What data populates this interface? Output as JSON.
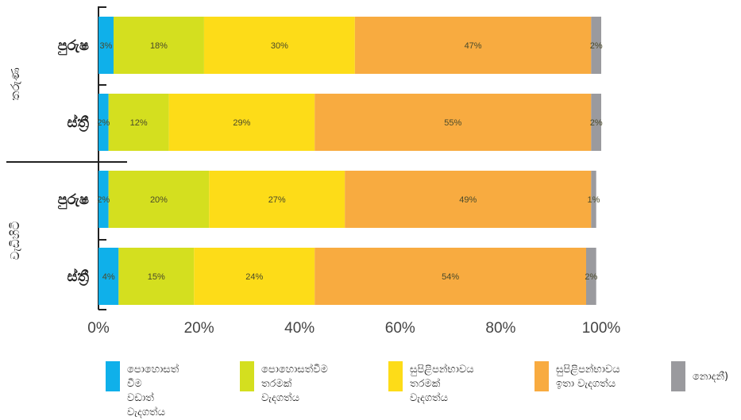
{
  "chart_data": {
    "type": "bar",
    "orientation": "horizontal",
    "stacked": true,
    "groups": [
      {
        "label": "තරුණ",
        "rows": [
          "පුරුෂ",
          "ස්ත්‍රී"
        ]
      },
      {
        "label": "වැඩිහිටි",
        "rows": [
          "පුරුෂ",
          "ස්ත්‍රී"
        ]
      }
    ],
    "categories": [
      "පුරුෂ",
      "ස්ත්‍රී",
      "පුරුෂ",
      "ස්ත්‍රී"
    ],
    "series": [
      {
        "name": "පොහොසත් වීම\nවඩාත් වැදගත්ය",
        "color": "#0fb0ea",
        "values": [
          3,
          2,
          2,
          4
        ]
      },
      {
        "name": "පොහොසත්වීම\nතරමක් වැදගත්ය",
        "color": "#d4df1f",
        "values": [
          18,
          12,
          20,
          15
        ]
      },
      {
        "name": "සුපිළිපන්භාවය\nතරමක් වැදගත්ය",
        "color": "#fddc18",
        "values": [
          30,
          29,
          27,
          24
        ]
      },
      {
        "name": "සුපිළිපන්භාවය\nඉතා වැදගත්ය",
        "color": "#f8ab40",
        "values": [
          47,
          55,
          49,
          54
        ]
      },
      {
        "name": "නොදනී)",
        "color": "#9a9a9e",
        "values": [
          2,
          2,
          1,
          2
        ]
      }
    ],
    "xlim": [
      0,
      100
    ],
    "xticks": [
      "0%",
      "20%",
      "40%",
      "60%",
      "80%",
      "100%"
    ],
    "grid": false,
    "legend_position": "bottom"
  }
}
